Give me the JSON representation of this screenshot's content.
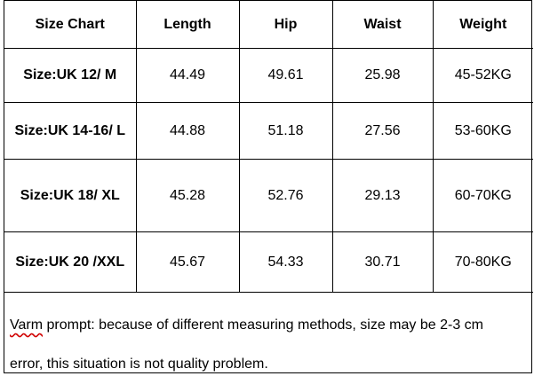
{
  "table": {
    "headers": [
      "Size Chart",
      "Length",
      "Hip",
      "Waist",
      "Weight"
    ],
    "rows": [
      {
        "size": "Size:UK 12/ M",
        "length": "44.49",
        "hip": "49.61",
        "waist": "25.98",
        "weight": "45-52KG"
      },
      {
        "size": "Size:UK 14-16/ L",
        "length": "44.88",
        "hip": "51.18",
        "waist": "27.56",
        "weight": "53-60KG"
      },
      {
        "size": "Size:UK 18/ XL",
        "length": "45.28",
        "hip": "52.76",
        "waist": "29.13",
        "weight": "60-70KG"
      },
      {
        "size": "Size:UK 20 /XXL",
        "length": "45.67",
        "hip": "54.33",
        "waist": "30.71",
        "weight": "70-80KG"
      }
    ]
  },
  "note": {
    "flagged_word": "Varm",
    "line1_rest": " prompt: because of different measuring methods, size may be 2-3 cm",
    "line2": "error, this situation is not quality problem."
  }
}
